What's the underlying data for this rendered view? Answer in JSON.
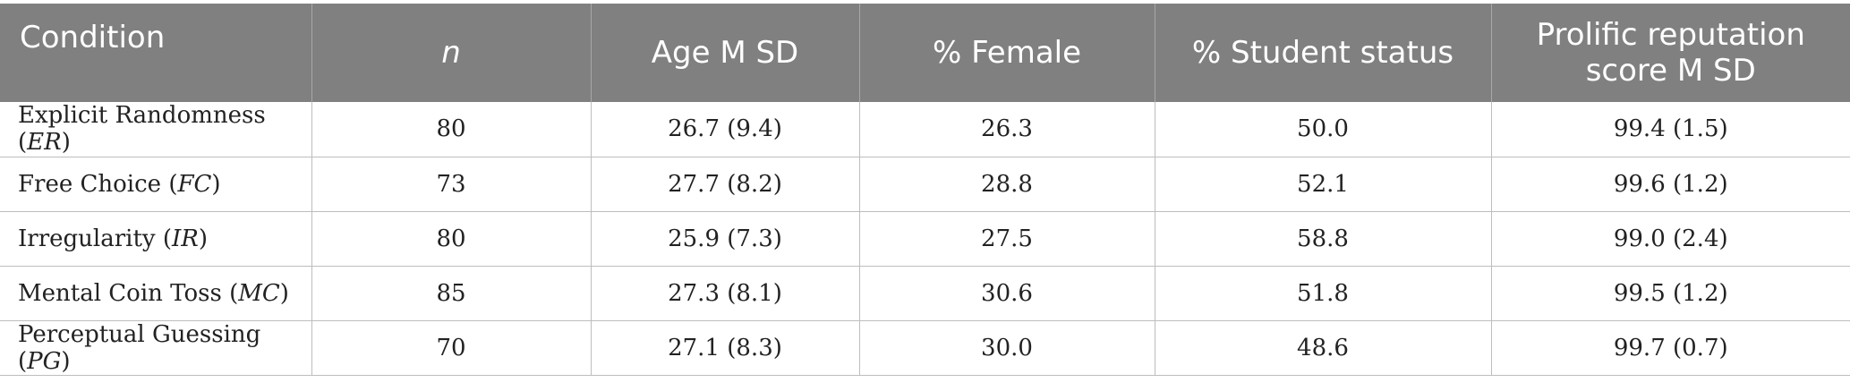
{
  "table": {
    "headers": {
      "condition": "Condition",
      "n": "n",
      "age": "Age M SD",
      "female": "% Female",
      "student": "% Student status",
      "prolific_line1": "Prolific reputation",
      "prolific_line2": "score M SD"
    },
    "rows": [
      {
        "condition": "Explicit Randomness",
        "abbr": "ER",
        "n": "80",
        "age": "26.7 (9.4)",
        "female": "26.3",
        "student": "50.0",
        "prolific": "99.4 (1.5)"
      },
      {
        "condition": "Free Choice",
        "abbr": "FC",
        "n": "73",
        "age": "27.7 (8.2)",
        "female": "28.8",
        "student": "52.1",
        "prolific": "99.6 (1.2)"
      },
      {
        "condition": "Irregularity",
        "abbr": "IR",
        "n": "80",
        "age": "25.9 (7.3)",
        "female": "27.5",
        "student": "58.8",
        "prolific": "99.0 (2.4)"
      },
      {
        "condition": "Mental Coin Toss",
        "abbr": "MC",
        "n": "85",
        "age": "27.3 (8.1)",
        "female": "30.6",
        "student": "51.8",
        "prolific": "99.5 (1.2)"
      },
      {
        "condition": "Perceptual Guessing",
        "abbr": "PG",
        "n": "70",
        "age": "27.1 (8.3)",
        "female": "30.0",
        "student": "48.6",
        "prolific": "99.7 (0.7)"
      }
    ]
  }
}
